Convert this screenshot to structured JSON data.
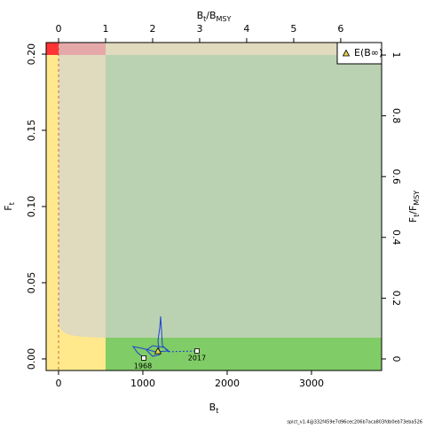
{
  "chart_data": {
    "type": "line",
    "xlabel": [
      "B",
      "t"
    ],
    "ylabel": [
      "F",
      "t"
    ],
    "x2label": [
      "B",
      "t",
      "/B",
      "MSY"
    ],
    "y2label": [
      "F",
      "t",
      "/F",
      "MSY"
    ],
    "xlim": [
      -147,
      3832
    ],
    "xticks": [
      0,
      1000,
      2000,
      3000
    ],
    "ylim": [
      -0.0076,
      0.2076
    ],
    "yticks": [
      {
        "value": 0,
        "label": "0.00"
      },
      0.05,
      {
        "value": 0.1,
        "label": "0.10"
      },
      0.15,
      {
        "value": 0.2,
        "label": "0.20"
      }
    ],
    "x2lim": [
      -0.264,
      6.87
    ],
    "x2ticks": [
      0,
      1,
      2,
      3,
      4,
      5,
      6
    ],
    "y2lim": [
      -0.038,
      1.041
    ],
    "y2ticks": [
      0,
      0.2,
      0.4,
      0.6,
      0.8,
      1
    ],
    "series": [
      {
        "color": "#1f3fd6",
        "style": "solid",
        "x": [
          1011,
          937,
          884,
          989,
          1147,
          1305,
          1253,
          1116,
          1042,
          1116,
          1200,
          1179,
          1200,
          1211,
          1232,
          1305
        ],
        "values": [
          0.0006,
          0.0041,
          0.0081,
          0.007,
          0.0047,
          0.0052,
          0.0076,
          0.0087,
          0.0058,
          0.0017,
          0.0029,
          0.0116,
          0.0203,
          0.0279,
          0.0087,
          0.0047
        ]
      },
      {
        "color": "#1f3fd6",
        "style": "dotted",
        "x": [
          1305,
          1642
        ],
        "values": [
          0.0047,
          0.0052
        ]
      }
    ],
    "annotations": [
      "1968",
      "2017"
    ],
    "legend": {
      "label": "E(B∞)",
      "x": 1179,
      "value": 0.0052,
      "color": "#e8d44d",
      "position": "top-right"
    },
    "footer": "spict_v1.4@332f459e7d96cec206b7aca803fdb0eb73eba526"
  }
}
